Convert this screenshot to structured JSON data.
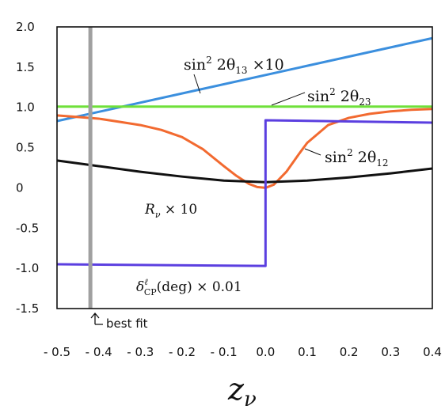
{
  "chart_data": {
    "type": "line",
    "xlabel": "z_ν",
    "xlim": [
      -0.5,
      0.4
    ],
    "ylim": [
      -1.5,
      2.0
    ],
    "grid": false,
    "x_ticks": [
      "- 0.5",
      "- 0.4",
      "- 0.3",
      "- 0.2",
      "- 0.1",
      "0.0",
      "0.1",
      "0.2",
      "0.3",
      "0.4"
    ],
    "y_ticks": [
      "2.0",
      "1.5",
      "1.0",
      "0.5",
      "0",
      "-0.5",
      "-1.0",
      "-1.5"
    ],
    "series": [
      {
        "name": "sin²2θ₁₃ ×10",
        "color": "#3b8fde",
        "x": [
          -0.5,
          0.4
        ],
        "y": [
          0.83,
          1.86
        ]
      },
      {
        "name": "sin²2θ₂₃",
        "color": "#6fe03a",
        "x": [
          -0.5,
          0.4
        ],
        "y": [
          1.01,
          1.01
        ]
      },
      {
        "name": "sin²2θ₁₂",
        "color": "#f26a30",
        "x": [
          -0.5,
          -0.45,
          -0.4,
          -0.35,
          -0.3,
          -0.25,
          -0.2,
          -0.15,
          -0.1,
          -0.07,
          -0.04,
          -0.02,
          0.0,
          0.02,
          0.05,
          0.08,
          0.1,
          0.15,
          0.2,
          0.25,
          0.3,
          0.35,
          0.4
        ],
        "y": [
          0.9,
          0.88,
          0.86,
          0.82,
          0.78,
          0.72,
          0.63,
          0.48,
          0.27,
          0.15,
          0.05,
          0.01,
          0.0,
          0.04,
          0.2,
          0.42,
          0.56,
          0.78,
          0.87,
          0.92,
          0.95,
          0.97,
          0.98
        ]
      },
      {
        "name": "R_ν × 10",
        "color": "#111111",
        "x": [
          -0.5,
          -0.4,
          -0.3,
          -0.2,
          -0.1,
          0.0,
          0.1,
          0.2,
          0.3,
          0.4
        ],
        "y": [
          0.34,
          0.27,
          0.2,
          0.14,
          0.09,
          0.07,
          0.09,
          0.13,
          0.18,
          0.24
        ]
      },
      {
        "name": "δ^ℓ_CP(deg) × 0.01",
        "color": "#5b3fe0",
        "x": [
          -0.5,
          0.0,
          0.0,
          0.4
        ],
        "y": [
          -0.95,
          -0.97,
          0.84,
          0.81
        ]
      }
    ],
    "best_fit": {
      "x": -0.42,
      "label": "best fit",
      "color": "#a0a0a0"
    }
  }
}
